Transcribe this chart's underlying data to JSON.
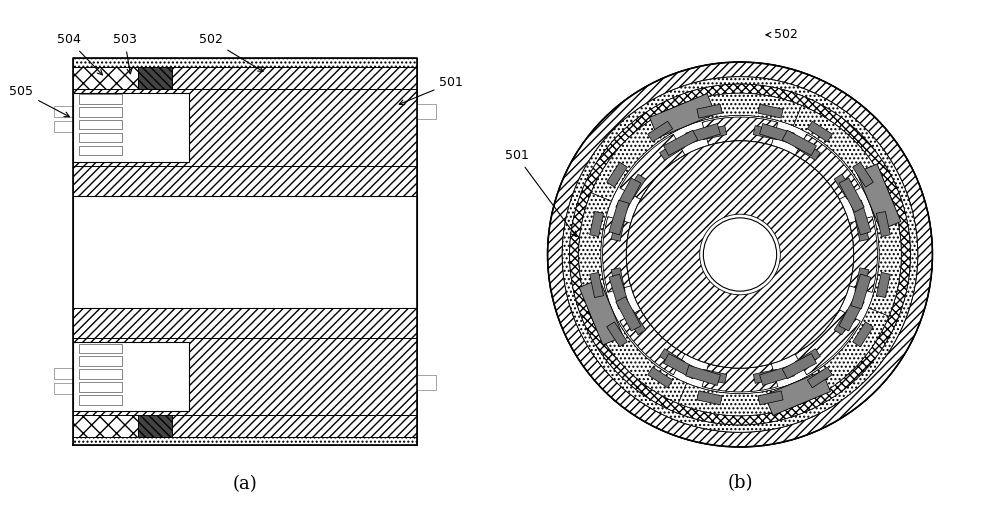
{
  "fig_width": 10.0,
  "fig_height": 5.09,
  "bg_color": "#ffffff",
  "label_a": "(a)",
  "label_b": "(b)"
}
